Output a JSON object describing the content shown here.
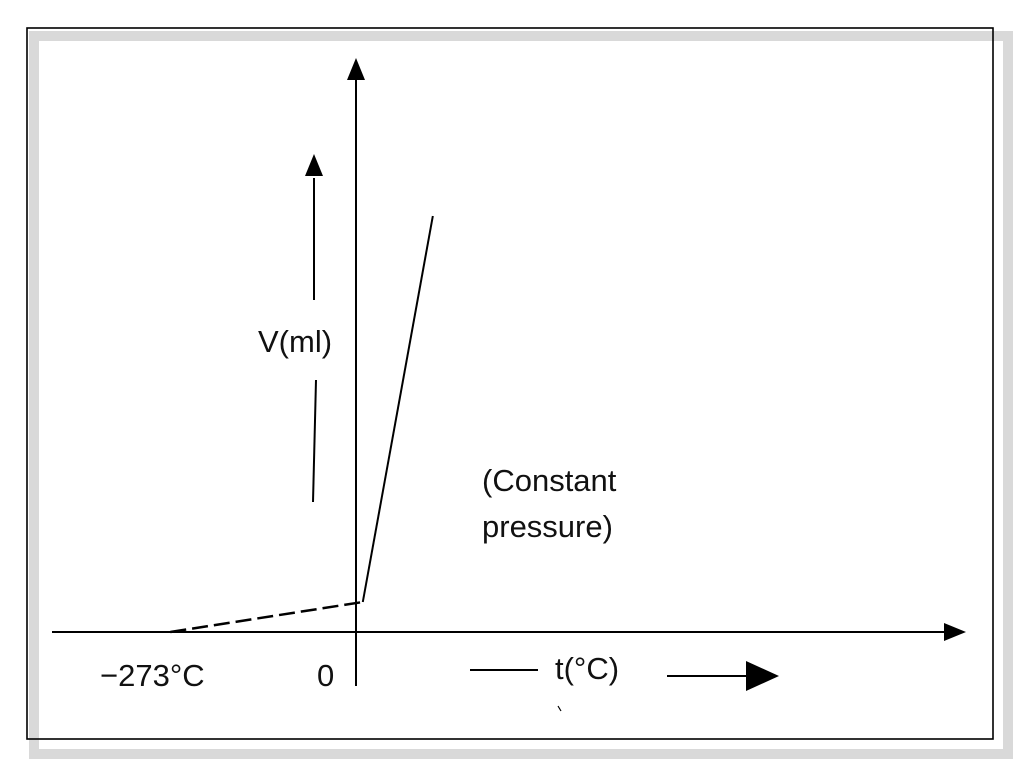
{
  "chart_data": {
    "type": "line",
    "title": "",
    "xlabel": "t(°C)",
    "ylabel": "V(ml)",
    "x_marked_values": [
      -273,
      0
    ],
    "x_tick_labels": [
      "−273°C",
      "0"
    ],
    "annotation": {
      "line_1": "(Constant",
      "line_2": "pressure)"
    },
    "series": [
      {
        "line_style": "solid",
        "x": [
          10,
          113
        ],
        "y": [
          7.5,
          104
        ]
      },
      {
        "line_style": "dashed",
        "x": [
          -273,
          10
        ],
        "y": [
          0,
          7.5
        ]
      }
    ],
    "y_axis_at_x": 0,
    "x_axis_at_y": 0,
    "grid": false,
    "legend": "none"
  },
  "style": {
    "stroke_color": "#000000",
    "text_color": "#111111",
    "frame_shadow_color": "#d9d9d9",
    "background_color": "#ffffff"
  }
}
